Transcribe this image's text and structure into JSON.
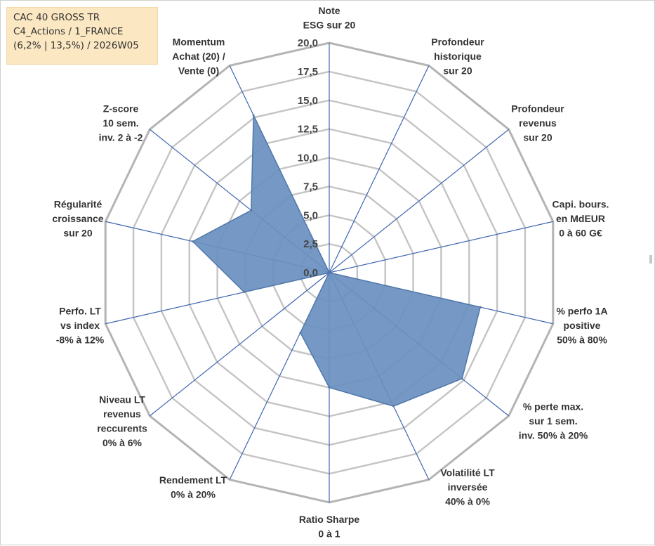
{
  "title_box": {
    "line1": "CAC 40 GROSS TR",
    "line2": "C4_Actions / 1_FRANCE",
    "line3": "(6,2% | 13,5%) / 2026W05"
  },
  "chart_data": {
    "type": "radar",
    "title": "CAC 40 GROSS TR",
    "rmin": 0,
    "rmax": 20,
    "tick_step": 2.5,
    "ticks": [
      "0,0",
      "2,5",
      "5,0",
      "7,5",
      "10,0",
      "12,5",
      "15,0",
      "17,5",
      "20,0"
    ],
    "axes": [
      {
        "lines": [
          "Note",
          "ESG sur 20"
        ]
      },
      {
        "lines": [
          "Profondeur",
          "historique",
          "sur 20"
        ]
      },
      {
        "lines": [
          "Profondeur",
          "revenus",
          "sur 20"
        ]
      },
      {
        "lines": [
          "Capi. bours.",
          "en MdEUR",
          "0 à 60 G€"
        ]
      },
      {
        "lines": [
          "% perfo 1A",
          "positive",
          "50% à 80%"
        ]
      },
      {
        "lines": [
          "% perte max.",
          "sur 1 sem.",
          "inv. 50% à 20%"
        ]
      },
      {
        "lines": [
          "Volatilité LT",
          "inversée",
          "40% à 0%"
        ]
      },
      {
        "lines": [
          "Ratio Sharpe",
          "0 à 1"
        ]
      },
      {
        "lines": [
          "Rendement LT",
          "0% à 20%"
        ]
      },
      {
        "lines": [
          "Niveau LT",
          "revenus",
          "reccurents",
          "0% à 6%"
        ]
      },
      {
        "lines": [
          "Perfo. LT",
          "vs index",
          "-8% à 12%"
        ]
      },
      {
        "lines": [
          "Régularité",
          "croissance",
          "sur 20"
        ]
      },
      {
        "lines": [
          "Z-score",
          "10 sem.",
          "inv. 2 à -2"
        ]
      },
      {
        "lines": [
          "Momentum",
          "Achat (20) /",
          "Vente (0)"
        ]
      }
    ],
    "series": [
      {
        "name": "CAC 40 GROSS TR",
        "values": [
          0,
          0,
          0,
          0,
          13.5,
          14.8,
          12.9,
          10.0,
          5.8,
          0,
          7.6,
          12.2,
          8.7,
          15.2
        ]
      }
    ],
    "colors": {
      "fill": "#6a8fbf",
      "stroke": "#5078aa",
      "spoke": "#3f66b0",
      "grid": "#c4c4c4",
      "outer": "#b4b4b4"
    }
  }
}
